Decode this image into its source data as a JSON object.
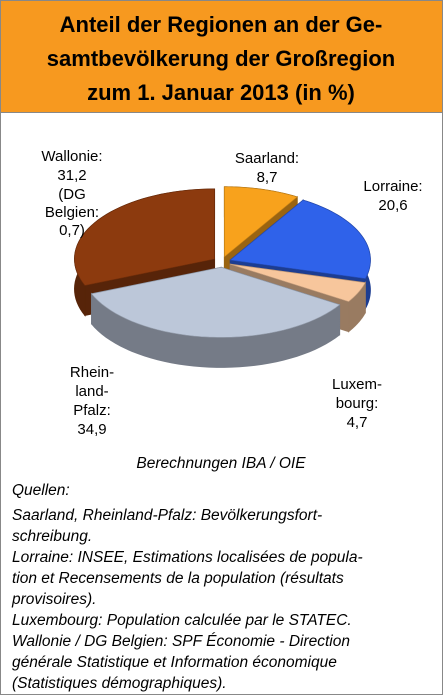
{
  "chart_data": {
    "type": "pie",
    "title": [
      "Anteil der Regionen an der Ge-",
      "samtbevölkerung der Großregion",
      "zum 1. Januar 2013 (in %)"
    ],
    "categories": [
      "Saarland:",
      "Lorraine:",
      "Luxem-\nbourg:",
      "Rhein-\nland-\nPfalz:",
      "Wallonie:"
    ],
    "values": [
      8.7,
      20.6,
      4.7,
      34.9,
      31.2
    ],
    "value_labels": [
      "8,7",
      "20,6",
      "4,7",
      "34,9",
      "31,2"
    ],
    "colors": [
      "#f8a21c",
      "#2f62ea",
      "#f7c69c",
      "#bcc7d9",
      "#8c3a0e"
    ],
    "annotation": "(DG\nBelgien:\n0,7)",
    "calculation": "Berechnungen IBA / OIE",
    "sources_heading": "Quellen:",
    "sources": [
      "Saarland, Rheinland-Pfalz: Bevölkerungsfort-",
      "schreibung.",
      "Lorraine: INSEE, Estimations localisées de popula-",
      "tion et Recensements de la population (résultats",
      "provisoires).",
      "Luxembourg: Population calculée par le STATEC.",
      "Wallonie / DG Belgien:  SPF Économie - Direction",
      "générale Statistique et Information économique",
      "(Statistiques démographiques)."
    ]
  }
}
